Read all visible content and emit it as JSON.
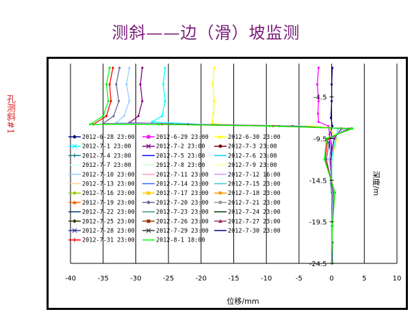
{
  "title": "测斜——边（滑）坡监测",
  "side_label": "孔测斜#1",
  "chart_data": {
    "type": "line",
    "xlabel": "位移/mm",
    "ylabel": "深度/m",
    "xlim": [
      -40,
      10
    ],
    "ylim": [
      -0.5,
      -24.5
    ],
    "x_ticks": [
      -40,
      -35,
      -30,
      -25,
      -20,
      -15,
      -10,
      -5,
      0,
      5,
      10
    ],
    "y_ticks": [
      -4.5,
      -9.5,
      -14.5,
      -19.5,
      -24.5
    ],
    "grid": "vertical",
    "legend_position": "left, inside plot",
    "series": [
      {
        "name": "2012-6-28 23:00",
        "color": "#000080",
        "marker": "diamond"
      },
      {
        "name": "2012-6-29 23:00",
        "color": "#ff00ff",
        "marker": "square"
      },
      {
        "name": "2012-6-30 23:00",
        "color": "#ffff00",
        "marker": "triangle"
      },
      {
        "name": "2012-7-1 23:00",
        "color": "#00ffff",
        "marker": "x"
      },
      {
        "name": "2012-7-2 23:00",
        "color": "#800080",
        "marker": "star"
      },
      {
        "name": "2012-7-3 23:00",
        "color": "#800000",
        "marker": "circle"
      },
      {
        "name": "2012-7-4 23:00",
        "color": "#008080",
        "marker": "plus"
      },
      {
        "name": "2012-7-5 23:00",
        "color": "#0000ff",
        "marker": "none"
      },
      {
        "name": "2012-7-6 23:00",
        "color": "#00ccff",
        "marker": "none"
      },
      {
        "name": "2012-7-7 23:00",
        "color": "#ccffff",
        "marker": "none"
      },
      {
        "name": "2012-7-8 23:00",
        "color": "#ccffcc",
        "marker": "none"
      },
      {
        "name": "2012-7-9 23:00",
        "color": "#ffff99",
        "marker": "none"
      },
      {
        "name": "2012-7-10 23:00",
        "color": "#99ccff",
        "marker": "none"
      },
      {
        "name": "2012-7-11 23:00",
        "color": "#ff99cc",
        "marker": "none"
      },
      {
        "name": "2012-7-12 16:00",
        "color": "#cc99ff",
        "marker": "none"
      },
      {
        "name": "2012-7-13 23:00",
        "color": "#ffcc99",
        "marker": "none"
      },
      {
        "name": "2012-7-14 23:00",
        "color": "#3366ff",
        "marker": "none"
      },
      {
        "name": "2012-7-15 23:00",
        "color": "#33cccc",
        "marker": "none"
      },
      {
        "name": "2012-7-16 23:00",
        "color": "#99cc00",
        "marker": "diamond"
      },
      {
        "name": "2012-7-17 23:00",
        "color": "#ffcc00",
        "marker": "square"
      },
      {
        "name": "2012-7-18 23:00",
        "color": "#ff9900",
        "marker": "circle"
      },
      {
        "name": "2012-7-19 23:00",
        "color": "#ff6600",
        "marker": "triangle"
      },
      {
        "name": "2012-7-20 23:00",
        "color": "#666699",
        "marker": "diamond"
      },
      {
        "name": "2012-7-21 23:00",
        "color": "#969696",
        "marker": "circle"
      },
      {
        "name": "2012-7-22 23:00",
        "color": "#003366",
        "marker": "none"
      },
      {
        "name": "2012-7-23 23:00",
        "color": "#339966",
        "marker": "none"
      },
      {
        "name": "2012-7-24 23:00",
        "color": "#003300",
        "marker": "none"
      },
      {
        "name": "2012-7-25 23:00",
        "color": "#333300",
        "marker": "diamond"
      },
      {
        "name": "2012-7-26 23:00",
        "color": "#993300",
        "marker": "square"
      },
      {
        "name": "2012-7-27 23:00",
        "color": "#993366",
        "marker": "triangle"
      },
      {
        "name": "2012-7-28 23:00",
        "color": "#333399",
        "marker": "x"
      },
      {
        "name": "2012-7-29 23:00",
        "color": "#333333",
        "marker": "x"
      },
      {
        "name": "2012-7-30 23:00",
        "color": "#000080",
        "marker": "none"
      },
      {
        "name": "2012-7-31 23:00",
        "color": "#ff0000",
        "marker": "plus"
      },
      {
        "name": "2012-8-1 18:00",
        "color": "#00ff00",
        "marker": "none"
      }
    ],
    "profiles": [
      {
        "series": "2012-6-28 23:00",
        "points": [
          [
            0.1,
            -1
          ],
          [
            0.0,
            -3
          ],
          [
            0.0,
            -5
          ],
          [
            -0.1,
            -7
          ],
          [
            0.1,
            -8
          ],
          [
            -0.3,
            -9
          ],
          [
            -0.4,
            -10
          ],
          [
            0.0,
            -12
          ],
          [
            -0.2,
            -14
          ],
          [
            0.0,
            -16
          ],
          [
            0.1,
            -18
          ],
          [
            0.0,
            -20
          ],
          [
            0.1,
            -22
          ],
          [
            0.1,
            -24.5
          ]
        ]
      },
      {
        "series": "2012-6-29 23:00",
        "points": [
          [
            -2.0,
            -1
          ],
          [
            -2.2,
            -3
          ],
          [
            -2.0,
            -5
          ],
          [
            -2.1,
            -6.5
          ],
          [
            -2.0,
            -7.5
          ],
          [
            -0.5,
            -8
          ],
          [
            -0.3,
            -9
          ],
          [
            0.0,
            -12
          ],
          [
            0.0,
            -16
          ],
          [
            0.0,
            -20
          ],
          [
            0.0,
            -24.5
          ]
        ]
      },
      {
        "series": "2012-6-30 23:00",
        "points": [
          [
            -18.0,
            -1
          ],
          [
            -18.2,
            -3
          ],
          [
            -18.0,
            -5
          ],
          [
            -18.1,
            -6.5
          ],
          [
            -18.3,
            -7.7
          ],
          [
            -16.0,
            -7.85
          ],
          [
            -3.0,
            -8.0
          ],
          [
            -0.4,
            -8.2
          ],
          [
            0.8,
            -9.5
          ],
          [
            0.0,
            -12
          ],
          [
            0.0,
            -16
          ],
          [
            0.0,
            -20
          ],
          [
            0.0,
            -24.5
          ]
        ]
      },
      {
        "series": "2012-7-1 23:00",
        "points": [
          [
            -25.5,
            -1
          ],
          [
            -25.8,
            -3
          ],
          [
            -25.5,
            -5
          ],
          [
            -26.0,
            -6.8
          ],
          [
            -27.5,
            -7.5
          ],
          [
            -20.0,
            -7.8
          ],
          [
            -5.0,
            -8.0
          ],
          [
            1.0,
            -8.3
          ],
          [
            0.6,
            -9.5
          ],
          [
            0.0,
            -12
          ],
          [
            0.0,
            -16
          ],
          [
            0.0,
            -20
          ],
          [
            0.0,
            -24.5
          ]
        ]
      },
      {
        "series": "2012-7-2 23:00",
        "points": [
          [
            -29.0,
            -1
          ],
          [
            -29.3,
            -3
          ],
          [
            -29.0,
            -5
          ],
          [
            -29.6,
            -6.8
          ],
          [
            -31.0,
            -7.6
          ],
          [
            -22.0,
            -7.8
          ],
          [
            -6.0,
            -8.0
          ],
          [
            1.5,
            -8.3
          ],
          [
            0.4,
            -9.5
          ],
          [
            -0.2,
            -12
          ],
          [
            0.1,
            -16
          ],
          [
            0.0,
            -20
          ],
          [
            0.0,
            -24.5
          ]
        ]
      },
      {
        "series": "2012-7-10 23:00",
        "points": [
          [
            -31.0,
            -1
          ],
          [
            -31.4,
            -3
          ],
          [
            -31.0,
            -5
          ],
          [
            -31.8,
            -6.8
          ],
          [
            -33.0,
            -7.6
          ],
          [
            -24.0,
            -7.8
          ],
          [
            -7.0,
            -8.0
          ],
          [
            2.0,
            -8.3
          ],
          [
            0.0,
            -9.5
          ],
          [
            -0.4,
            -12
          ],
          [
            0.2,
            -16
          ],
          [
            0.0,
            -20
          ],
          [
            0.0,
            -24.5
          ]
        ]
      },
      {
        "series": "2012-7-20 23:00",
        "points": [
          [
            -32.5,
            -1
          ],
          [
            -33.0,
            -3
          ],
          [
            -32.6,
            -5
          ],
          [
            -33.4,
            -6.8
          ],
          [
            -35.0,
            -7.7
          ],
          [
            -25.0,
            -7.8
          ],
          [
            -8.0,
            -8.0
          ],
          [
            2.6,
            -8.3
          ],
          [
            -0.3,
            -9.5
          ],
          [
            -0.8,
            -12
          ],
          [
            0.3,
            -16
          ],
          [
            0.1,
            -20
          ],
          [
            0.0,
            -24.5
          ]
        ]
      },
      {
        "series": "2012-7-31 23:00",
        "points": [
          [
            -33.5,
            -1
          ],
          [
            -34.0,
            -3
          ],
          [
            -33.8,
            -5
          ],
          [
            -34.5,
            -6.8
          ],
          [
            -36.5,
            -7.8
          ],
          [
            -26.0,
            -7.8
          ],
          [
            -9.0,
            -8.0
          ],
          [
            3.0,
            -8.3
          ],
          [
            -0.6,
            -9.5
          ],
          [
            -1.0,
            -12
          ],
          [
            0.5,
            -16
          ],
          [
            0.1,
            -20
          ],
          [
            0.0,
            -24.5
          ]
        ]
      },
      {
        "series": "2012-8-1 18:00",
        "points": [
          [
            -34.0,
            -1
          ],
          [
            -34.5,
            -3
          ],
          [
            -34.2,
            -5
          ],
          [
            -35.0,
            -6.8
          ],
          [
            -37.0,
            -7.8
          ],
          [
            -26.5,
            -7.8
          ],
          [
            -9.5,
            -8.0
          ],
          [
            3.2,
            -8.3
          ],
          [
            -0.8,
            -9.5
          ],
          [
            -1.1,
            -12
          ],
          [
            0.5,
            -16
          ],
          [
            0.1,
            -20
          ],
          [
            0.0,
            -24.5
          ]
        ]
      }
    ]
  }
}
